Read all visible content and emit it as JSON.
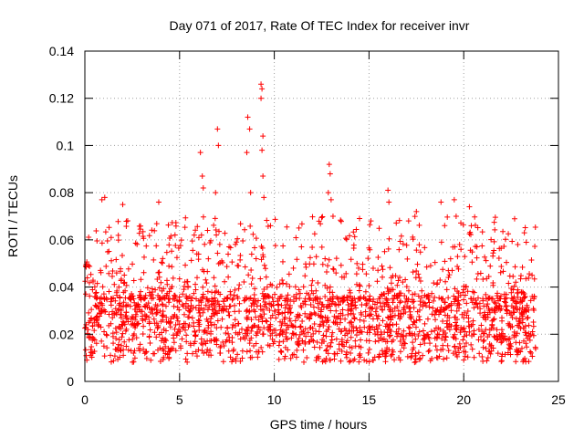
{
  "chart_data": {
    "type": "scatter",
    "title": "Day 071 of 2017, Rate Of TEC Index for receiver invr",
    "xlabel": "GPS time / hours",
    "ylabel": "ROTI / TECUs",
    "xlim": [
      0,
      25
    ],
    "ylim": [
      0,
      0.14
    ],
    "x_ticks": [
      0,
      5,
      10,
      15,
      20,
      25
    ],
    "x_tick_labels": [
      "0",
      "5",
      "10",
      "15",
      "20",
      "25"
    ],
    "y_ticks": [
      0,
      0.02,
      0.04,
      0.06,
      0.08,
      0.1,
      0.12,
      0.14
    ],
    "y_tick_labels": [
      "0",
      "0.02",
      "0.04",
      "0.06",
      "0.08",
      "0.1",
      "0.12",
      "0.14"
    ],
    "grid": true,
    "marker": "+",
    "color": "#ff0000",
    "observed_x_range": [
      0,
      23.8
    ],
    "baseline_band": [
      0.008,
      0.035
    ],
    "series": [
      {
        "name": "ROTI",
        "points": [
          [
            0.9,
            0.077
          ],
          [
            1.05,
            0.078
          ],
          [
            2.0,
            0.075
          ],
          [
            3.9,
            0.076
          ],
          [
            6.1,
            0.097
          ],
          [
            6.2,
            0.087
          ],
          [
            6.25,
            0.082
          ],
          [
            7.0,
            0.107
          ],
          [
            7.05,
            0.1
          ],
          [
            6.9,
            0.08
          ],
          [
            8.6,
            0.112
          ],
          [
            8.55,
            0.097
          ],
          [
            8.7,
            0.107
          ],
          [
            8.75,
            0.08
          ],
          [
            9.3,
            0.126
          ],
          [
            9.35,
            0.124
          ],
          [
            9.3,
            0.12
          ],
          [
            9.4,
            0.104
          ],
          [
            9.35,
            0.098
          ],
          [
            9.4,
            0.087
          ],
          [
            9.45,
            0.078
          ],
          [
            9.8,
            0.066
          ],
          [
            11.3,
            0.065
          ],
          [
            12.9,
            0.092
          ],
          [
            12.95,
            0.088
          ],
          [
            12.85,
            0.08
          ],
          [
            13.0,
            0.077
          ],
          [
            13.1,
            0.07
          ],
          [
            15.1,
            0.068
          ],
          [
            16.0,
            0.081
          ],
          [
            16.05,
            0.076
          ],
          [
            17.5,
            0.072
          ],
          [
            18.8,
            0.076
          ],
          [
            19.5,
            0.077
          ],
          [
            19.6,
            0.07
          ],
          [
            20.3,
            0.074
          ],
          [
            20.4,
            0.066
          ],
          [
            23.2,
            0.063
          ],
          [
            23.3,
            0.059
          ]
        ]
      }
    ]
  }
}
